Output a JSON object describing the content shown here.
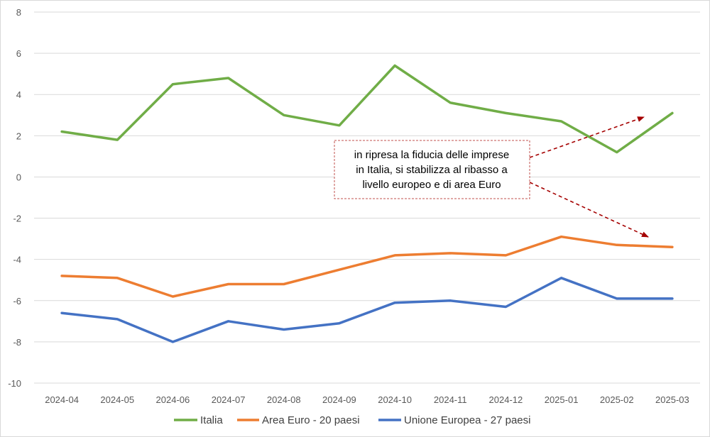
{
  "chart_data": {
    "type": "line",
    "title": "",
    "xlabel": "",
    "ylabel": "",
    "categories": [
      "2024-04",
      "2024-05",
      "2024-06",
      "2024-07",
      "2024-08",
      "2024-09",
      "2024-10",
      "2024-11",
      "2024-12",
      "2025-01",
      "2025-02",
      "2025-03"
    ],
    "ylim": [
      -10,
      8
    ],
    "yticks": [
      8,
      6,
      4,
      2,
      0,
      -2,
      -4,
      -6,
      -8,
      -10
    ],
    "ytick_labels": [
      "8",
      "6",
      "4",
      "2",
      "0",
      "-2",
      "-4",
      "-6",
      "-8",
      "-10"
    ],
    "grid": true,
    "legend_position": "bottom",
    "series": [
      {
        "name": "Italia",
        "color": "#70ad47",
        "values": [
          2.2,
          1.8,
          4.5,
          4.8,
          3.0,
          2.5,
          5.4,
          3.6,
          3.1,
          2.7,
          1.2,
          3.1
        ]
      },
      {
        "name": "Area Euro - 20 paesi",
        "color": "#ed7d31",
        "values": [
          -4.8,
          -4.9,
          -5.8,
          -5.2,
          -5.2,
          -4.5,
          -3.8,
          -3.7,
          -3.8,
          -2.9,
          -3.3,
          -3.4
        ]
      },
      {
        "name": "Unione Europea - 27 paesi",
        "color": "#4472c4",
        "values": [
          -6.6,
          -6.9,
          -8.0,
          -7.0,
          -7.4,
          -7.1,
          -6.1,
          -6.0,
          -6.3,
          -4.9,
          -5.9,
          -5.9
        ]
      }
    ],
    "annotation": {
      "lines": [
        "in ripresa la fiducia delle imprese",
        "in Italia, si stabilizza al ribasso  a",
        "livello europeo e di area Euro"
      ],
      "box_border_color": "#c0504d",
      "arrow_color": "#a50000"
    }
  }
}
